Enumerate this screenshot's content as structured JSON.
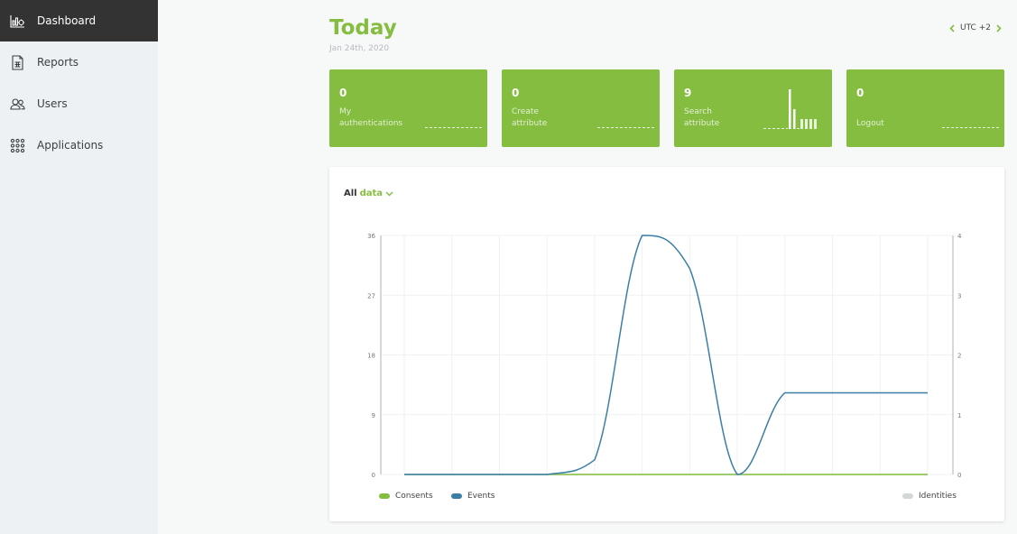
{
  "nav": {
    "items": [
      {
        "label": "Dashboard",
        "icon": "dashboard-icon",
        "active": true
      },
      {
        "label": "Reports",
        "icon": "reports-icon"
      },
      {
        "label": "Users",
        "icon": "users-icon"
      },
      {
        "label": "Applications",
        "icon": "applications-icon"
      }
    ]
  },
  "header": {
    "title": "Today",
    "date": "Jan 24th, 2020",
    "timezone": "UTC +2"
  },
  "cards": [
    {
      "value": "0",
      "label": "My authentications"
    },
    {
      "value": "0",
      "label": "Create attribute"
    },
    {
      "value": "9",
      "label": "Search attribute"
    },
    {
      "value": "0",
      "label": "Logout"
    }
  ],
  "filter": {
    "prefix": "All",
    "highlight": "data"
  },
  "colors": {
    "accent": "#84bd3f",
    "events": "#3b7fa6",
    "identities": "#d4d7d9"
  },
  "chart_data": {
    "type": "line",
    "y_left_ticks": [
      0,
      9,
      18,
      27,
      36
    ],
    "y_right_ticks": [
      0,
      1,
      2,
      3,
      4
    ],
    "ylim_left": [
      0,
      36
    ],
    "ylim_right": [
      0,
      4
    ],
    "grid": true,
    "legend_placement": "bottom",
    "x": [
      0,
      1,
      2,
      3,
      4,
      5,
      6,
      7,
      8,
      9,
      10,
      11
    ],
    "series": [
      {
        "name": "Consents",
        "axis": "left",
        "values": [
          0,
          0,
          0,
          0,
          0,
          0,
          0,
          0,
          0,
          0,
          0,
          0
        ]
      },
      {
        "name": "Events",
        "axis": "left",
        "values": [
          0,
          0,
          0,
          0,
          2.2,
          36,
          31,
          0,
          12.3,
          12.3,
          12.3,
          12.3
        ]
      },
      {
        "name": "Identities",
        "axis": "right",
        "values": [
          0,
          0,
          0,
          0,
          0,
          0,
          0,
          0,
          0,
          0,
          0,
          0
        ]
      }
    ]
  }
}
